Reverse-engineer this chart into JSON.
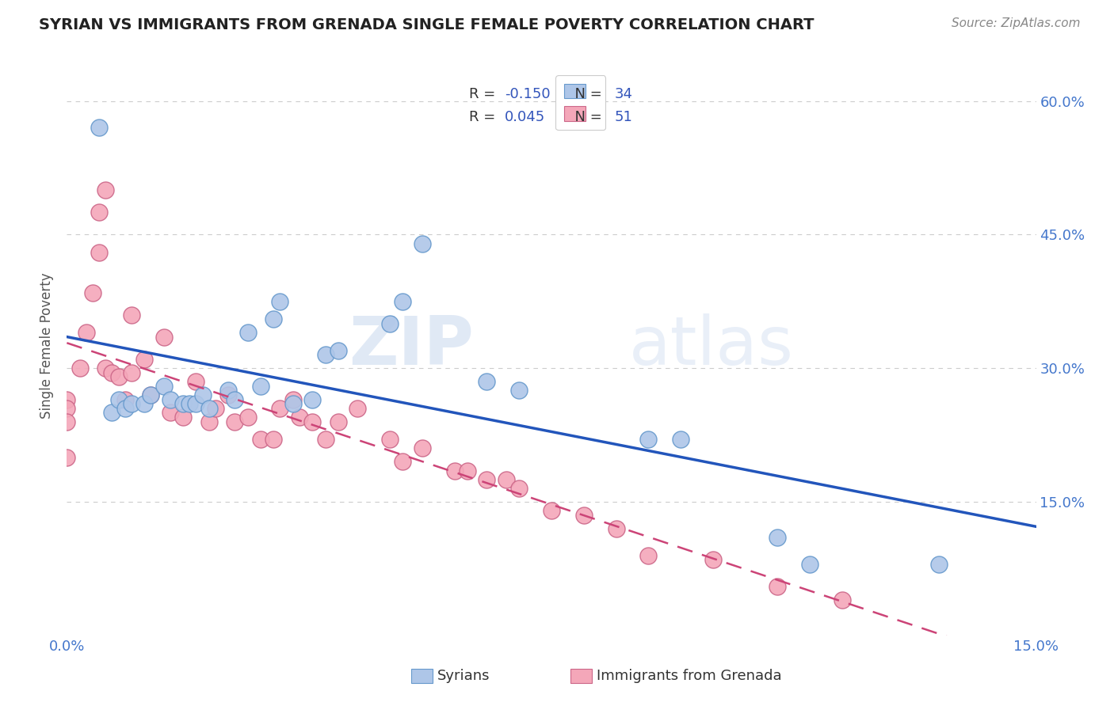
{
  "title": "SYRIAN VS IMMIGRANTS FROM GRENADA SINGLE FEMALE POVERTY CORRELATION CHART",
  "source": "Source: ZipAtlas.com",
  "ylabel": "Single Female Poverty",
  "xlim": [
    0.0,
    0.15
  ],
  "ylim": [
    0.0,
    0.65
  ],
  "x_ticks": [
    0.0,
    0.15
  ],
  "x_tick_labels": [
    "0.0%",
    "15.0%"
  ],
  "y_ticks": [
    0.15,
    0.3,
    0.45,
    0.6
  ],
  "y_tick_labels": [
    "15.0%",
    "30.0%",
    "45.0%",
    "60.0%"
  ],
  "grid_color": "#cccccc",
  "background_color": "#ffffff",
  "watermark_zip": "ZIP",
  "watermark_atlas": "atlas",
  "syrians_color": "#aec6e8",
  "syrians_edge_color": "#6699cc",
  "grenada_color": "#f4a7b9",
  "grenada_edge_color": "#cc6688",
  "blue_line_color": "#2255bb",
  "pink_line_color": "#cc4477",
  "syrians_x": [
    0.005,
    0.007,
    0.008,
    0.009,
    0.01,
    0.012,
    0.013,
    0.015,
    0.016,
    0.018,
    0.019,
    0.02,
    0.021,
    0.022,
    0.025,
    0.026,
    0.028,
    0.03,
    0.032,
    0.033,
    0.035,
    0.038,
    0.04,
    0.042,
    0.05,
    0.052,
    0.055,
    0.065,
    0.07,
    0.09,
    0.095,
    0.11,
    0.115,
    0.135
  ],
  "syrians_y": [
    0.57,
    0.25,
    0.265,
    0.255,
    0.26,
    0.26,
    0.27,
    0.28,
    0.265,
    0.26,
    0.26,
    0.26,
    0.27,
    0.255,
    0.275,
    0.265,
    0.34,
    0.28,
    0.355,
    0.375,
    0.26,
    0.265,
    0.315,
    0.32,
    0.35,
    0.375,
    0.44,
    0.285,
    0.275,
    0.22,
    0.22,
    0.11,
    0.08,
    0.08
  ],
  "grenada_x": [
    0.0,
    0.0,
    0.0,
    0.0,
    0.002,
    0.003,
    0.004,
    0.005,
    0.005,
    0.006,
    0.006,
    0.007,
    0.008,
    0.009,
    0.01,
    0.01,
    0.012,
    0.013,
    0.015,
    0.016,
    0.018,
    0.02,
    0.022,
    0.023,
    0.025,
    0.026,
    0.028,
    0.03,
    0.032,
    0.033,
    0.035,
    0.036,
    0.038,
    0.04,
    0.042,
    0.045,
    0.05,
    0.052,
    0.055,
    0.06,
    0.062,
    0.065,
    0.068,
    0.07,
    0.075,
    0.08,
    0.085,
    0.09,
    0.1,
    0.11,
    0.12
  ],
  "grenada_y": [
    0.265,
    0.255,
    0.24,
    0.2,
    0.3,
    0.34,
    0.385,
    0.43,
    0.475,
    0.5,
    0.3,
    0.295,
    0.29,
    0.265,
    0.36,
    0.295,
    0.31,
    0.27,
    0.335,
    0.25,
    0.245,
    0.285,
    0.24,
    0.255,
    0.27,
    0.24,
    0.245,
    0.22,
    0.22,
    0.255,
    0.265,
    0.245,
    0.24,
    0.22,
    0.24,
    0.255,
    0.22,
    0.195,
    0.21,
    0.185,
    0.185,
    0.175,
    0.175,
    0.165,
    0.14,
    0.135,
    0.12,
    0.09,
    0.085,
    0.055,
    0.04
  ]
}
